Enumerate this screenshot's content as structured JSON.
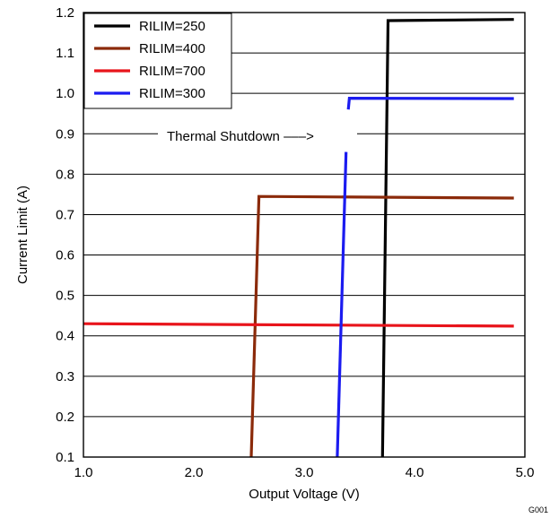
{
  "chart_data": {
    "type": "line",
    "title": "",
    "xlabel": "Output Voltage (V)",
    "ylabel": "Current Limit (A)",
    "xlim": [
      1.0,
      5.0
    ],
    "ylim": [
      0.1,
      1.2
    ],
    "x_ticks": [
      1.0,
      2.0,
      3.0,
      4.0,
      5.0
    ],
    "x_tick_labels": [
      "1.0",
      "2.0",
      "3.0",
      "4.0",
      "5.0"
    ],
    "y_ticks": [
      0.1,
      0.2,
      0.3,
      0.4,
      0.5,
      0.6,
      0.7,
      0.8,
      0.9,
      1.0,
      1.1,
      1.2
    ],
    "y_tick_labels": [
      "0.1",
      "0.2",
      "0.3",
      "0.4",
      "0.5",
      "0.6",
      "0.7",
      "0.8",
      "0.9",
      "1.0",
      "1.1",
      "1.2"
    ],
    "grid": "horizontal",
    "legend_position": "top-left",
    "series": [
      {
        "name": "RILIM=250",
        "color": "#000000",
        "x": [
          3.71,
          3.76,
          4.9
        ],
        "y": [
          0.1,
          1.18,
          1.183
        ]
      },
      {
        "name": "RILIM=400",
        "color": "#8B2A0A",
        "x": [
          2.52,
          2.59,
          4.9
        ],
        "y": [
          0.1,
          0.745,
          0.741
        ]
      },
      {
        "name": "RILIM=700",
        "color": "#E8141B",
        "x": [
          1.0,
          4.9
        ],
        "y": [
          0.43,
          0.424
        ]
      },
      {
        "name": "RILIM=300",
        "color": "#1B1BF0",
        "segments": [
          {
            "x": [
              3.3,
              3.38
            ],
            "y": [
              0.1,
              0.855
            ]
          },
          {
            "x": [
              3.4,
              3.41,
              4.9
            ],
            "y": [
              0.96,
              0.988,
              0.987
            ]
          }
        ]
      }
    ],
    "annotations": [
      {
        "text": "Thermal Shutdown –––>",
        "x": 2.72,
        "y": 0.9
      }
    ],
    "figure_id": "G001"
  }
}
